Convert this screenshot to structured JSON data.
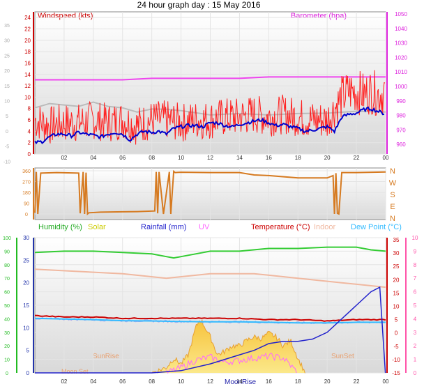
{
  "title": "24 hour graph day : 15 May 2016",
  "x_ticks": [
    "02",
    "04",
    "06",
    "08",
    "10",
    "12",
    "14",
    "16",
    "18",
    "20",
    "22",
    "00"
  ],
  "colors": {
    "wind_axis": "#cc0000",
    "baro": "#dd22dd",
    "gust": "#ff2020",
    "avg": "#0000cc",
    "baro_line": "#ee44ee",
    "grey_line": "#bbbbbb",
    "dir": "#d67a20",
    "humidity": "#33cc33",
    "solar": "#dddd00",
    "rain": "#2222cc",
    "uv": "#ff66ff",
    "temp": "#cc0000",
    "indoor": "#f0b8a0",
    "dew": "#33bbff",
    "green_axis": "#22bb22",
    "pink_axis": "#ff55aa",
    "blue_axis": "#2233aa"
  },
  "chart_data": [
    {
      "type": "line",
      "title": "24 hour graph day : 15 May 2016",
      "left_axis_label": "Windspeed (kts)",
      "right_axis_label": "Barometer (hpa)",
      "left_ticks": [
        "24",
        "22",
        "20",
        "18",
        "16",
        "14",
        "12",
        "10",
        "8",
        "6",
        "4",
        "2",
        "0"
      ],
      "left_ticks_grey": [
        "35",
        "30",
        "25",
        "20",
        "15",
        "10",
        "5",
        "0",
        "-5",
        "-10"
      ],
      "right_ticks": [
        "1050",
        "1040",
        "1030",
        "1020",
        "1010",
        "1000",
        "990",
        "980",
        "970",
        "960"
      ],
      "ylim": [
        0,
        25
      ],
      "series": [
        {
          "name": "Gust",
          "x": [
            0,
            1,
            2,
            3,
            4,
            5,
            6,
            7,
            8,
            9,
            10,
            11,
            12,
            13,
            14,
            15,
            16,
            17,
            18,
            19,
            20,
            21,
            21.5,
            22,
            22.5,
            23,
            23.5,
            24
          ],
          "values": [
            6,
            5,
            5.5,
            5.5,
            6,
            5.5,
            6,
            5,
            6,
            6,
            5.5,
            6,
            6,
            6.5,
            6.5,
            7,
            6.5,
            7,
            6.5,
            6,
            6,
            10,
            11,
            11,
            10.5,
            11,
            10.5,
            11
          ]
        },
        {
          "name": "Average",
          "x": [
            0,
            0.5,
            1,
            1.5,
            2,
            2.5,
            3,
            3.5,
            4,
            4.5,
            5,
            5.5,
            6,
            6.5,
            7,
            7.5,
            8,
            8.5,
            9,
            9.5,
            10,
            10.5,
            11,
            11.5,
            12,
            12.5,
            13,
            13.5,
            14,
            14.5,
            15,
            15.5,
            16,
            16.5,
            17,
            17.5,
            18,
            18.5,
            19,
            19.5,
            20,
            20.5,
            21,
            21.5,
            22,
            22.5,
            23,
            23.5,
            24
          ],
          "values": [
            2,
            2.2,
            3,
            3.5,
            3.5,
            3.2,
            3.8,
            3.5,
            3.3,
            3,
            3.5,
            3.8,
            3.5,
            2.5,
            3.5,
            4,
            3.8,
            4,
            3.5,
            4.5,
            4.8,
            5,
            5,
            4.8,
            5.5,
            5.5,
            5,
            4.8,
            5.2,
            5.5,
            5.8,
            6,
            5.5,
            5,
            5.2,
            4.8,
            4.5,
            4,
            4.2,
            4.5,
            4.8,
            4,
            6.5,
            7,
            7.2,
            7.8,
            8,
            7.5,
            7
          ]
        },
        {
          "name": "Barometer",
          "x": [
            0,
            2,
            4,
            6,
            8,
            10,
            12,
            14,
            16,
            18,
            20,
            22,
            24
          ],
          "values": [
            1006,
            1006,
            1006,
            1006,
            1007,
            1007,
            1007,
            1007,
            1008,
            1008,
            1008,
            1008,
            1008
          ]
        },
        {
          "name": "Grey",
          "x": [
            0,
            1,
            2,
            3,
            4,
            5,
            6,
            7,
            8,
            9,
            10,
            12,
            14,
            16,
            18,
            20,
            22,
            24
          ],
          "values": [
            8,
            9,
            8.5,
            8.5,
            9,
            8.5,
            8,
            7.5,
            7.8,
            8,
            7.5,
            7,
            7,
            7,
            7,
            7.3,
            7.4,
            7.5
          ]
        }
      ]
    },
    {
      "type": "line",
      "right_ticks": [
        "N",
        "W",
        "S",
        "E",
        "N"
      ],
      "left_ticks": [
        "360",
        "270",
        "180",
        "90",
        "0"
      ],
      "ylim": [
        0,
        360
      ],
      "series": [
        {
          "name": "Direction",
          "x": [
            0,
            0.1,
            0.2,
            0.4,
            1.5,
            3,
            3.1,
            3.3,
            3.4,
            3.5,
            3.6,
            3.7,
            4.5,
            6,
            7,
            8.2,
            8.3,
            8.4,
            8.5,
            8.8,
            9.2,
            9.3,
            9.5,
            9.6,
            10,
            12,
            14,
            15,
            16,
            18,
            20,
            20.4,
            20.5,
            20.6,
            20.7,
            20.8,
            21,
            22,
            24
          ],
          "values": [
            10,
            350,
            0,
            340,
            345,
            340,
            5,
            350,
            0,
            345,
            0,
            10,
            15,
            18,
            20,
            25,
            350,
            5,
            350,
            0,
            350,
            0,
            355,
            345,
            348,
            345,
            345,
            325,
            320,
            300,
            300,
            320,
            0,
            340,
            5,
            0,
            345,
            345,
            350
          ]
        }
      ]
    },
    {
      "type": "line",
      "labels": {
        "humidity": "Humidity (%)",
        "solar": "Solar",
        "rain": "Rainfall (mm)",
        "uv": "UV",
        "temp": "Temperature (°C)",
        "indoor": "Indoor",
        "dew": "Dew Point (°C)"
      },
      "left_ticks": [
        "100",
        "90",
        "80",
        "70",
        "60",
        "50",
        "40",
        "30",
        "20",
        "10",
        "0"
      ],
      "left_ticks_blue": [
        "30",
        "25",
        "20",
        "15",
        "10",
        "5",
        "0"
      ],
      "right_ticks_temp": [
        "35",
        "30",
        "25",
        "20",
        "15",
        "10",
        "5",
        "0",
        "-5",
        "-10",
        "-15"
      ],
      "right_ticks_uv": [
        "10",
        "9",
        "8",
        "7",
        "6",
        "5",
        "4",
        "3",
        "2",
        "1",
        "0"
      ],
      "annotations": [
        "SunRise",
        "SunSet",
        "Moon Set",
        "MoonRise"
      ],
      "series": [
        {
          "name": "Humidity",
          "x": [
            0,
            2,
            4,
            6,
            8,
            9,
            9.5,
            10,
            11,
            12,
            14,
            16,
            18,
            20,
            22,
            23,
            24
          ],
          "values": [
            89,
            90,
            90,
            89,
            88,
            86,
            85,
            86,
            88,
            90,
            90,
            92,
            92,
            93,
            93,
            91,
            90
          ]
        },
        {
          "name": "Indoor",
          "x": [
            0,
            3,
            6,
            9,
            12,
            15,
            18,
            21,
            24
          ],
          "values": [
            23,
            22.5,
            22,
            21,
            22,
            22,
            21,
            20,
            19
          ]
        },
        {
          "name": "Temperature",
          "x": [
            0,
            2,
            4,
            6,
            8,
            10,
            12,
            14,
            16,
            18,
            20,
            22,
            24
          ],
          "values": [
            6.5,
            6,
            6,
            5.5,
            5.5,
            5.5,
            5.5,
            5.5,
            5,
            5,
            4.5,
            5,
            5
          ]
        },
        {
          "name": "Dew Point",
          "x": [
            0,
            2,
            4,
            6,
            8,
            10,
            12,
            14,
            16,
            18,
            20,
            22,
            24
          ],
          "values": [
            5.5,
            5.2,
            5,
            4.6,
            4.5,
            4.3,
            4.2,
            4.2,
            4,
            3.8,
            3.8,
            4,
            4
          ]
        },
        {
          "name": "Rainfall",
          "x": [
            0,
            8,
            10,
            12,
            14,
            15,
            16,
            17,
            18,
            19,
            20,
            21,
            22,
            23,
            23.6,
            24
          ],
          "values": [
            0,
            0,
            0.5,
            2,
            4,
            5,
            6.5,
            7,
            7,
            7.5,
            9,
            12,
            15,
            18,
            19,
            0
          ]
        },
        {
          "name": "Solar",
          "x": [
            8,
            9,
            9.5,
            10,
            10.5,
            11,
            11.3,
            11.6,
            12,
            12.5,
            13,
            13.5,
            14,
            14.5,
            15,
            15.5,
            16,
            16.5,
            17,
            17.5,
            18,
            18.5
          ],
          "values": [
            0,
            3,
            8,
            5,
            10,
            25,
            30,
            26,
            20,
            10,
            12,
            15,
            15,
            18,
            20,
            19,
            22,
            20,
            15,
            18,
            8,
            0
          ]
        },
        {
          "name": "UV",
          "x": [
            9,
            10,
            11,
            12,
            13,
            14,
            15,
            16,
            17,
            18
          ],
          "values": [
            0,
            5,
            12,
            15,
            10,
            12,
            14,
            16,
            14,
            0
          ]
        }
      ]
    }
  ]
}
